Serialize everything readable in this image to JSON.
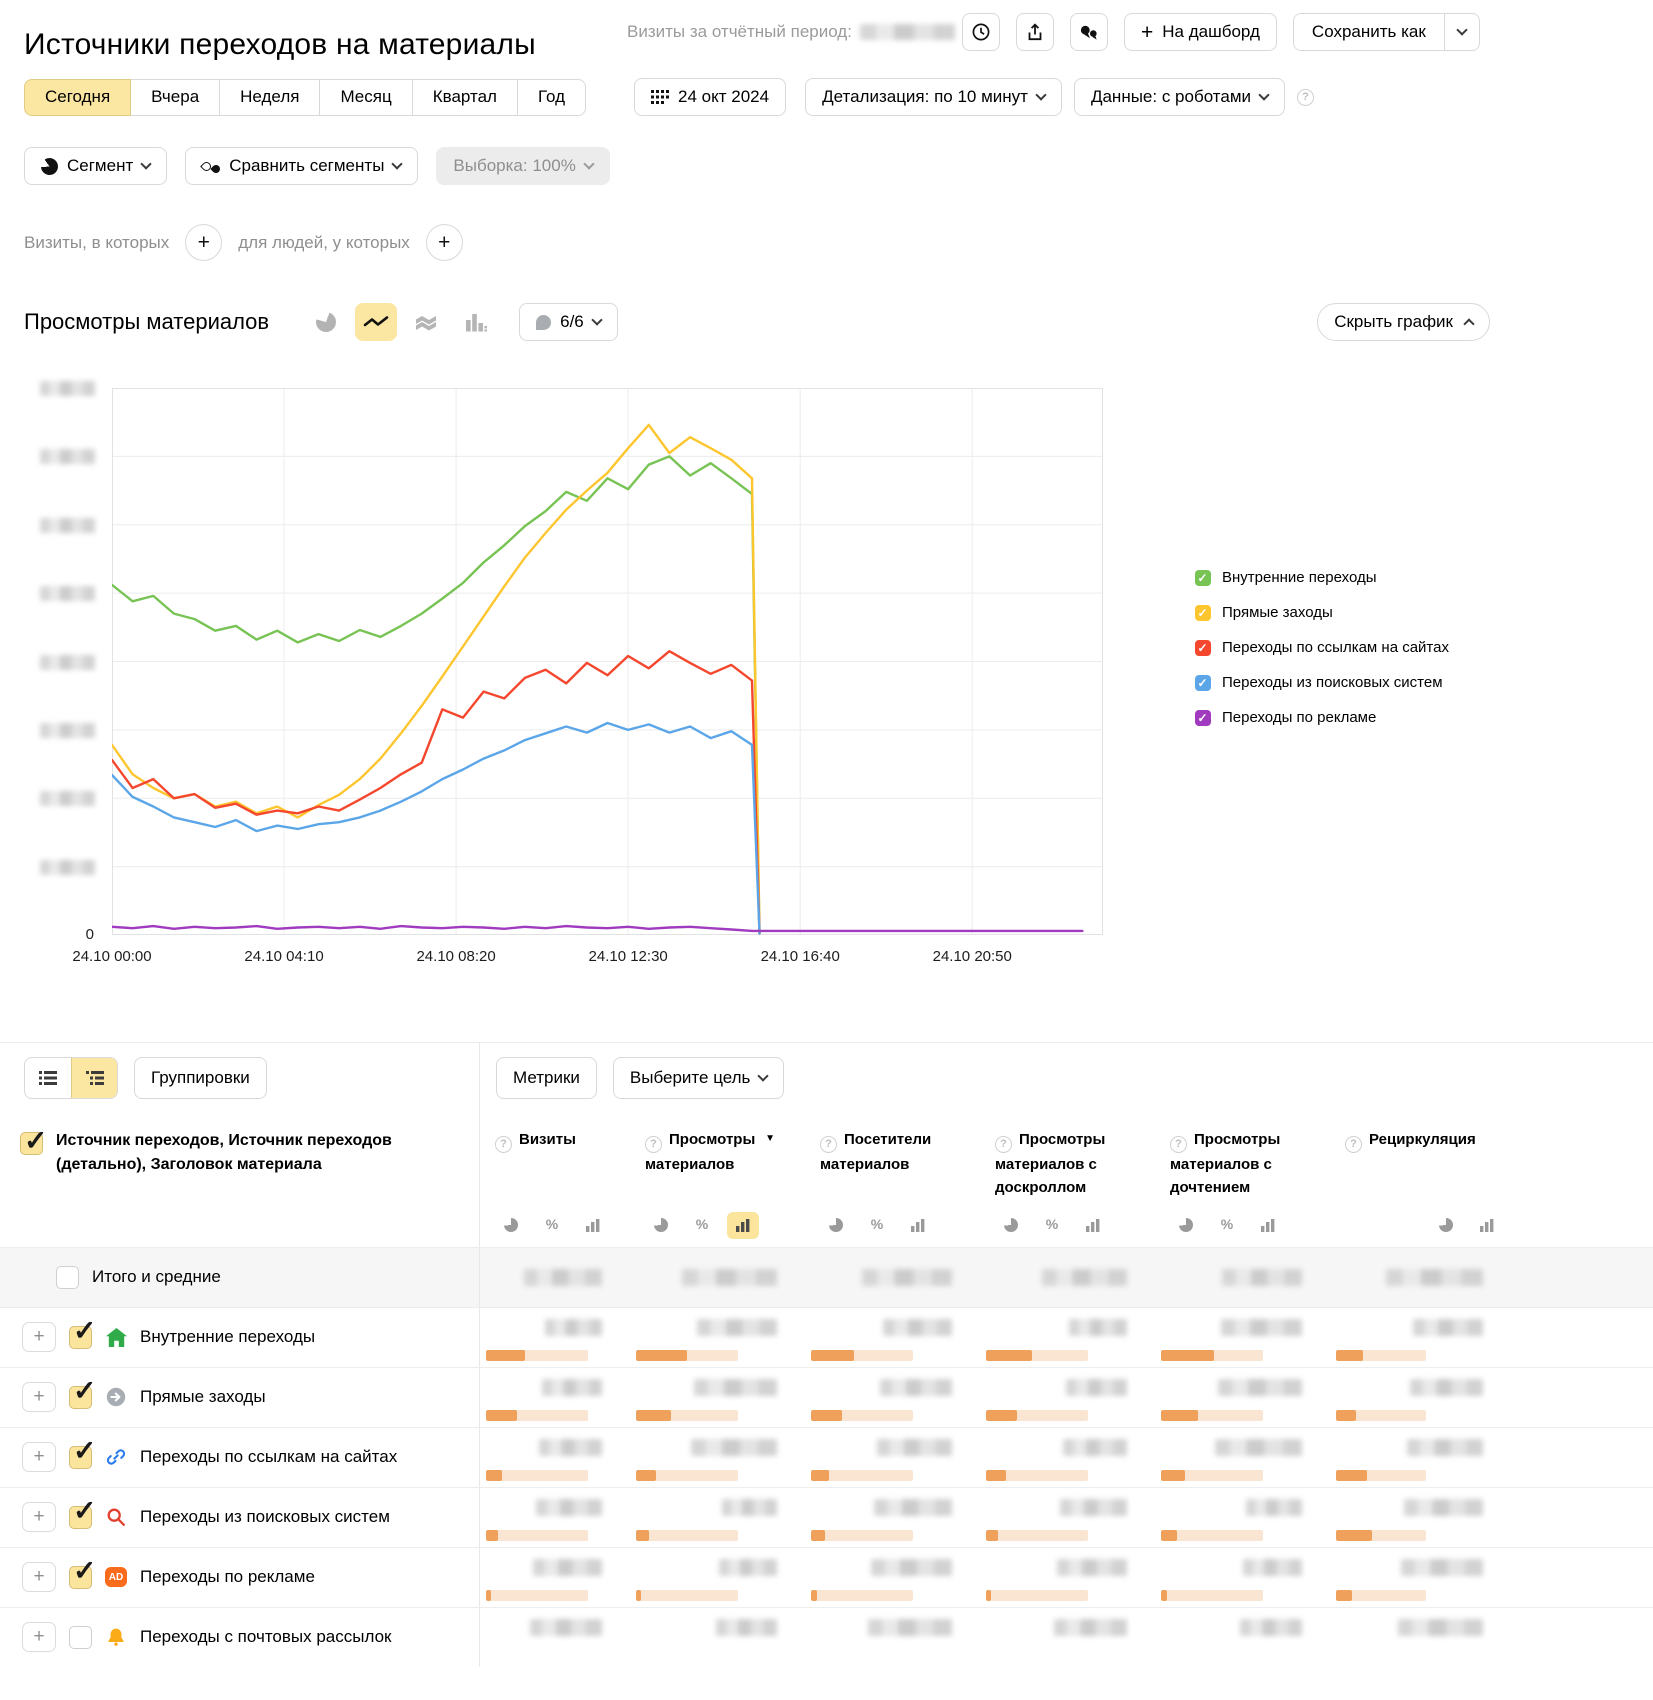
{
  "header": {
    "title": "Источники переходов на материалы",
    "visits_label": "Визиты за отчётный период:",
    "dashboard_label": "На дашборд",
    "save_as_label": "Сохранить как"
  },
  "toolbar": {
    "period_tabs": [
      {
        "label": "Сегодня",
        "active": true
      },
      {
        "label": "Вчера",
        "active": false
      },
      {
        "label": "Неделя",
        "active": false
      },
      {
        "label": "Месяц",
        "active": false
      },
      {
        "label": "Квартал",
        "active": false
      },
      {
        "label": "Год",
        "active": false
      }
    ],
    "date_label": "24 окт 2024",
    "detail_label": "Детализация: по 10 минут",
    "data_label": "Данные: с роботами"
  },
  "segment": {
    "segment_label": "Сегмент",
    "compare_label": "Сравнить сегменты",
    "sample_label": "Выборка: 100%"
  },
  "filters": {
    "visits_label": "Визиты, в которых",
    "people_label": "для людей, у которых"
  },
  "chart_section": {
    "title": "Просмотры материалов",
    "series_counter": "6/6",
    "hide_label": "Скрыть график"
  },
  "chart_data": {
    "type": "line",
    "title": "Просмотры материалов",
    "x_axis": {
      "tick_labels": [
        "24.10 00:00",
        "24.10 04:10",
        "24.10 08:20",
        "24.10 12:30",
        "24.10 16:40",
        "24.10 20:50"
      ],
      "tick_hours": [
        0,
        4.1667,
        8.3333,
        12.5,
        16.6667,
        20.8333
      ],
      "range_hours": [
        0,
        24
      ]
    },
    "y_axis": {
      "min": 0,
      "max": 800,
      "gridline_step": 100,
      "zero_label": "0",
      "unit": "relative scale — numeric tick labels are blurred in the source"
    },
    "legend_position": "right",
    "series": [
      {
        "name": "Внутренние переходы",
        "color": "#77c353",
        "step_hours": 0.5,
        "drop_to_zero_hour": 15.68,
        "values": [
          512,
          488,
          496,
          470,
          462,
          445,
          452,
          432,
          445,
          428,
          440,
          430,
          446,
          436,
          452,
          470,
          492,
          515,
          545,
          570,
          598,
          620,
          648,
          635,
          668,
          652,
          688,
          700,
          672,
          690,
          668,
          645
        ]
      },
      {
        "name": "Прямые заходы",
        "color": "#fdc62f",
        "step_hours": 0.5,
        "drop_to_zero_hour": 15.68,
        "values": [
          278,
          235,
          215,
          200,
          206,
          188,
          195,
          178,
          188,
          172,
          190,
          205,
          228,
          258,
          295,
          335,
          378,
          422,
          466,
          510,
          552,
          588,
          622,
          650,
          676,
          712,
          746,
          705,
          728,
          712,
          695,
          668
        ]
      },
      {
        "name": "Переходы по ссылкам на сайтах",
        "color": "#f4472e",
        "step_hours": 0.5,
        "drop_to_zero_hour": 15.68,
        "values": [
          256,
          215,
          228,
          200,
          206,
          186,
          192,
          176,
          182,
          178,
          188,
          182,
          198,
          215,
          235,
          252,
          330,
          318,
          356,
          346,
          376,
          388,
          368,
          398,
          380,
          408,
          390,
          415,
          398,
          382,
          395,
          372
        ]
      },
      {
        "name": "Переходы из поисковых систем",
        "color": "#5ba6e8",
        "step_hours": 0.5,
        "drop_to_zero_hour": 15.68,
        "values": [
          234,
          202,
          188,
          172,
          165,
          158,
          168,
          152,
          160,
          155,
          162,
          165,
          172,
          182,
          195,
          210,
          228,
          242,
          258,
          270,
          285,
          295,
          305,
          296,
          310,
          300,
          308,
          296,
          305,
          288,
          298,
          278
        ]
      },
      {
        "name": "Переходы по рекламе",
        "color": "#a03bc0",
        "step_hours": 0.5,
        "values": [
          12,
          10,
          13,
          9,
          12,
          10,
          11,
          13,
          9,
          11,
          12,
          10,
          12,
          9,
          13,
          11,
          10,
          12,
          11,
          9,
          12,
          10,
          13,
          11,
          10,
          12,
          9,
          11,
          12,
          10,
          8,
          6,
          6,
          6,
          6,
          6,
          6,
          6,
          6,
          6,
          6,
          6,
          6,
          6,
          6,
          6,
          6,
          6
        ]
      }
    ]
  },
  "table": {
    "groupings_label": "Группировки",
    "metrics_label": "Метрики",
    "goal_label": "Выберите цель",
    "dimension_header": "Источник переходов, Источник переходов (детально), Заголовок материала",
    "columns": [
      {
        "label": "Визиты",
        "modes": [
          "pie",
          "percent",
          "bars"
        ]
      },
      {
        "label": "Просмотры материалов",
        "sorted": "desc",
        "modes": [
          "pie",
          "percent",
          "bars"
        ],
        "selected_mode": "bars"
      },
      {
        "label": "Посетители материалов",
        "modes": [
          "pie",
          "percent",
          "bars"
        ]
      },
      {
        "label": "Просмотры материалов с доскроллом",
        "modes": [
          "pie",
          "percent",
          "bars"
        ]
      },
      {
        "label": "Просмотры материалов с дочтением",
        "modes": [
          "pie",
          "percent",
          "bars"
        ]
      },
      {
        "label": "Рециркуляция",
        "modes": [
          "pie",
          "bars"
        ]
      }
    ],
    "rows": [
      {
        "label": "Итого и средние",
        "total": true,
        "checked": false,
        "bars": []
      },
      {
        "label": "Внутренние переходы",
        "icon": "home-icon",
        "checked": true,
        "bars": [
          0.38,
          0.5,
          0.42,
          0.45,
          0.52,
          0.3
        ]
      },
      {
        "label": "Прямые заходы",
        "icon": "direct-arrow-icon",
        "checked": true,
        "bars": [
          0.3,
          0.34,
          0.3,
          0.3,
          0.36,
          0.22
        ]
      },
      {
        "label": "Переходы по ссылкам на сайтах",
        "icon": "link-icon",
        "checked": true,
        "bars": [
          0.16,
          0.2,
          0.18,
          0.2,
          0.24,
          0.34
        ]
      },
      {
        "label": "Переходы из поисковых систем",
        "icon": "search-icon",
        "checked": true,
        "bars": [
          0.12,
          0.13,
          0.14,
          0.12,
          0.16,
          0.4
        ]
      },
      {
        "label": "Переходы по рекламе",
        "icon": "ad-icon",
        "checked": true,
        "bars": [
          0.05,
          0.05,
          0.06,
          0.05,
          0.06,
          0.18
        ]
      },
      {
        "label": "Переходы с почтовых рассылок",
        "icon": "bell-icon",
        "checked": false,
        "bars": []
      }
    ]
  }
}
